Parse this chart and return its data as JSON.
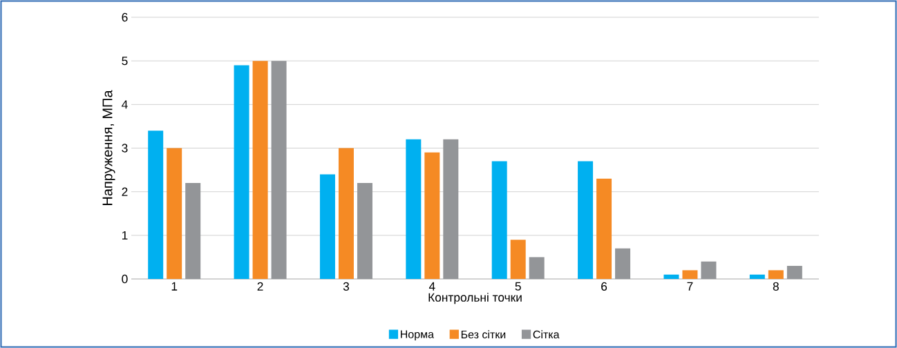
{
  "chart_data": {
    "type": "bar",
    "xlabel": "Контрольні точки",
    "ylabel": "Напруження, МПа",
    "categories": [
      "1",
      "2",
      "3",
      "4",
      "5",
      "6",
      "7",
      "8"
    ],
    "series": [
      {
        "name": "Норма",
        "color": "#00b0f0",
        "values": [
          3.4,
          4.9,
          2.4,
          3.2,
          2.7,
          2.7,
          0.1,
          0.1
        ]
      },
      {
        "name": "Без сітки",
        "color": "#f58a24",
        "values": [
          3.0,
          5.0,
          3.0,
          2.9,
          0.9,
          2.3,
          0.2,
          0.2
        ]
      },
      {
        "name": "Сітка",
        "color": "#939598",
        "values": [
          2.2,
          5.0,
          2.2,
          3.2,
          0.5,
          0.7,
          0.4,
          0.3
        ]
      }
    ],
    "ylim": [
      0,
      6
    ],
    "yticks": [
      0,
      1,
      2,
      3,
      4,
      5,
      6
    ],
    "grid": "y",
    "legend": "bottom"
  }
}
